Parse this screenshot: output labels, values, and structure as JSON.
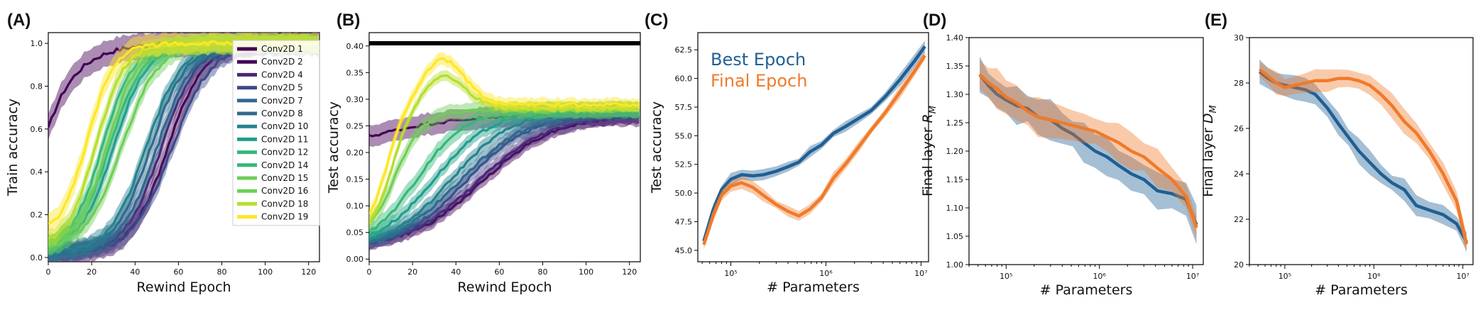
{
  "colors": {
    "viridis": [
      "#440154",
      "#482878",
      "#3e4989",
      "#31688e",
      "#26828e",
      "#1f9e89",
      "#35b779",
      "#6ece58",
      "#b5de2b",
      "#fde725"
    ],
    "best": "#1f5f94",
    "final": "#f07a2a"
  },
  "chart_data": [
    {
      "type": "line",
      "panel": "(A)",
      "xlabel": "Rewind Epoch",
      "ylabel": "Train accuracy",
      "xlim": [
        0,
        125
      ],
      "ylim": [
        -0.02,
        1.05
      ],
      "xticks": [
        "0",
        "20",
        "40",
        "60",
        "80",
        "100",
        "120"
      ],
      "yticks": [
        "0.0",
        "0.2",
        "0.4",
        "0.6",
        "0.8",
        "1.0"
      ],
      "legend_position": "top-right",
      "series": [
        {
          "name": "Conv2D 1",
          "color_idx": 0,
          "y0": 0.6,
          "a": 0.0,
          "k": 0.08,
          "ymax": 1.0,
          "band": 0.06
        },
        {
          "name": "Conv2D 2",
          "color_idx": 0,
          "y0": 0.02,
          "a": 55,
          "k": 0.12,
          "ymax": 1.0,
          "band": 0.05
        },
        {
          "name": "Conv2D 4",
          "color_idx": 1,
          "y0": 0.02,
          "a": 52,
          "k": 0.12,
          "ymax": 1.0,
          "band": 0.04
        },
        {
          "name": "Conv2D 5",
          "color_idx": 2,
          "y0": 0.02,
          "a": 57,
          "k": 0.11,
          "ymax": 1.0,
          "band": 0.04
        },
        {
          "name": "Conv2D 7",
          "color_idx": 3,
          "y0": 0.02,
          "a": 47,
          "k": 0.12,
          "ymax": 1.0,
          "band": 0.04
        },
        {
          "name": "Conv2D 8",
          "color_idx": 3,
          "y0": 0.02,
          "a": 50,
          "k": 0.12,
          "ymax": 1.0,
          "band": 0.04
        },
        {
          "name": "Conv2D 10",
          "color_idx": 4,
          "y0": 0.02,
          "a": 45,
          "k": 0.12,
          "ymax": 1.0,
          "band": 0.04
        },
        {
          "name": "Conv2D 11",
          "color_idx": 5,
          "y0": 0.03,
          "a": 30,
          "k": 0.13,
          "ymax": 1.0,
          "band": 0.04
        },
        {
          "name": "Conv2D 12",
          "color_idx": 6,
          "y0": 0.03,
          "a": 28,
          "k": 0.13,
          "ymax": 1.0,
          "band": 0.04
        },
        {
          "name": "Conv2D 14",
          "color_idx": 6,
          "y0": 0.04,
          "a": 25,
          "k": 0.14,
          "ymax": 1.0,
          "band": 0.04
        },
        {
          "name": "Conv2D 15",
          "color_idx": 7,
          "y0": 0.04,
          "a": 34,
          "k": 0.12,
          "ymax": 1.0,
          "band": 0.04
        },
        {
          "name": "Conv2D 16",
          "color_idx": 7,
          "y0": 0.04,
          "a": 27,
          "k": 0.14,
          "ymax": 1.0,
          "band": 0.04
        },
        {
          "name": "Conv2D 18",
          "color_idx": 8,
          "y0": 0.05,
          "a": 22,
          "k": 0.15,
          "ymax": 1.0,
          "band": 0.04
        },
        {
          "name": "Conv2D 19",
          "color_idx": 9,
          "y0": 0.1,
          "a": 18,
          "k": 0.16,
          "ymax": 1.0,
          "band": 0.05
        }
      ]
    },
    {
      "type": "line",
      "panel": "(B)",
      "xlabel": "Rewind Epoch",
      "ylabel": "Test accuracy",
      "xlim": [
        0,
        125
      ],
      "ylim": [
        -0.005,
        0.425
      ],
      "xticks": [
        "0",
        "20",
        "40",
        "60",
        "80",
        "100",
        "120"
      ],
      "yticks": [
        "0.00",
        "0.05",
        "0.10",
        "0.15",
        "0.20",
        "0.25",
        "0.30",
        "0.35",
        "0.40"
      ],
      "hline": {
        "y": 0.405,
        "color": "#000000"
      },
      "series": [
        {
          "color_idx": 0,
          "y0": 0.19,
          "a": 0,
          "k": 0.05,
          "ymax": 0.27,
          "band": 0.02,
          "peak": 0
        },
        {
          "color_idx": 0,
          "y0": 0.02,
          "a": 52,
          "k": 0.06,
          "ymax": 0.27,
          "band": 0.012,
          "peak": 0
        },
        {
          "color_idx": 1,
          "y0": 0.02,
          "a": 50,
          "k": 0.06,
          "ymax": 0.27,
          "band": 0.012,
          "peak": 0
        },
        {
          "color_idx": 2,
          "y0": 0.02,
          "a": 45,
          "k": 0.065,
          "ymax": 0.275,
          "band": 0.012,
          "peak": 0
        },
        {
          "color_idx": 3,
          "y0": 0.02,
          "a": 42,
          "k": 0.065,
          "ymax": 0.275,
          "band": 0.012,
          "peak": 0
        },
        {
          "color_idx": 4,
          "y0": 0.02,
          "a": 38,
          "k": 0.07,
          "ymax": 0.28,
          "band": 0.012,
          "peak": 0
        },
        {
          "color_idx": 5,
          "y0": 0.02,
          "a": 30,
          "k": 0.075,
          "ymax": 0.28,
          "band": 0.012,
          "peak": 0
        },
        {
          "color_idx": 6,
          "y0": 0.02,
          "a": 22,
          "k": 0.09,
          "ymax": 0.28,
          "band": 0.015,
          "peak": 0
        },
        {
          "color_idx": 7,
          "y0": 0.03,
          "a": 12,
          "k": 0.15,
          "ymax": 0.28,
          "band": 0.015,
          "peak": 0
        },
        {
          "color_idx": 8,
          "y0": 0.04,
          "a": 10,
          "k": 0.2,
          "ymax": 0.285,
          "band": 0.01,
          "peak": 0.06
        },
        {
          "color_idx": 9,
          "y0": 0.05,
          "a": 8,
          "k": 0.22,
          "ymax": 0.29,
          "band": 0.012,
          "peak": 0.085
        }
      ]
    },
    {
      "type": "line",
      "panel": "(C)",
      "xlabel": "# Parameters",
      "ylabel": "Test accuracy",
      "xscale": "log",
      "xlim": [
        45000,
        12000000
      ],
      "ylim": [
        44.0,
        64.0
      ],
      "xticks": [
        100000,
        1000000,
        10000000
      ],
      "yticks": [
        "45.0",
        "47.5",
        "50.0",
        "52.5",
        "55.0",
        "57.5",
        "60.0",
        "62.5"
      ],
      "legend": [
        "Best Epoch",
        "Final Epoch"
      ],
      "series": [
        {
          "name": "Best Epoch",
          "color": "best",
          "x": [
            52000,
            65000,
            80000,
            100000,
            130000,
            170000,
            220000,
            300000,
            400000,
            520000,
            680000,
            900000,
            1200000,
            1600000,
            2200000,
            3000000,
            4200000,
            6000000,
            8500000,
            11000000
          ],
          "y": [
            45.8,
            48.5,
            50.3,
            51.2,
            51.6,
            51.5,
            51.6,
            51.9,
            52.3,
            52.7,
            53.6,
            54.2,
            55.2,
            55.8,
            56.5,
            57.2,
            58.4,
            59.9,
            61.5,
            62.8
          ],
          "band": 0.3
        },
        {
          "name": "Final Epoch",
          "color": "final",
          "x": [
            52000,
            65000,
            80000,
            100000,
            130000,
            170000,
            220000,
            300000,
            400000,
            520000,
            680000,
            900000,
            1200000,
            1600000,
            2200000,
            3000000,
            4200000,
            6000000,
            8500000,
            11000000
          ],
          "y": [
            45.5,
            48.0,
            49.8,
            50.6,
            50.9,
            50.5,
            49.8,
            49.0,
            48.4,
            48.0,
            48.6,
            49.6,
            51.3,
            52.5,
            54.0,
            55.5,
            57.0,
            58.8,
            60.6,
            62.0
          ],
          "band": 0.3
        }
      ]
    },
    {
      "type": "line",
      "panel": "(D)",
      "xlabel": "# Parameters",
      "ylabel": "Final layer R_M",
      "xscale": "log",
      "xlim": [
        40000,
        13000000
      ],
      "ylim": [
        1.0,
        1.4
      ],
      "xticks": [
        100000,
        1000000,
        10000000
      ],
      "yticks": [
        "1.00",
        "1.05",
        "1.10",
        "1.15",
        "1.20",
        "1.25",
        "1.30",
        "1.35",
        "1.40"
      ],
      "series": [
        {
          "name": "Best Epoch",
          "color": "best",
          "x": [
            52000,
            65000,
            80000,
            100000,
            130000,
            170000,
            220000,
            300000,
            400000,
            520000,
            680000,
            900000,
            1200000,
            1600000,
            2200000,
            3000000,
            4200000,
            6000000,
            8500000,
            11000000
          ],
          "y": [
            1.335,
            1.315,
            1.3,
            1.29,
            1.28,
            1.275,
            1.26,
            1.255,
            1.24,
            1.23,
            1.215,
            1.2,
            1.19,
            1.175,
            1.16,
            1.15,
            1.13,
            1.125,
            1.115,
            1.07
          ],
          "band": 0.02
        },
        {
          "name": "Final Epoch",
          "color": "final",
          "x": [
            52000,
            65000,
            80000,
            100000,
            130000,
            170000,
            220000,
            300000,
            400000,
            520000,
            680000,
            900000,
            1200000,
            1600000,
            2200000,
            3000000,
            4200000,
            6000000,
            8500000,
            11000000
          ],
          "y": [
            1.335,
            1.32,
            1.31,
            1.295,
            1.285,
            1.27,
            1.26,
            1.255,
            1.25,
            1.245,
            1.24,
            1.235,
            1.225,
            1.215,
            1.2,
            1.19,
            1.17,
            1.15,
            1.12,
            1.065
          ],
          "band": 0.02
        }
      ]
    },
    {
      "type": "line",
      "panel": "(E)",
      "xlabel": "# Parameters",
      "ylabel": "Final layer D_M",
      "xscale": "log",
      "xlim": [
        40000,
        13000000
      ],
      "ylim": [
        20,
        30
      ],
      "xticks": [
        100000,
        1000000,
        10000000
      ],
      "yticks": [
        "20",
        "22",
        "24",
        "26",
        "28",
        "30"
      ],
      "series": [
        {
          "name": "Best Epoch",
          "color": "best",
          "x": [
            52000,
            65000,
            80000,
            100000,
            130000,
            170000,
            220000,
            300000,
            400000,
            520000,
            680000,
            900000,
            1200000,
            1600000,
            2200000,
            3000000,
            4200000,
            6000000,
            8500000,
            11000000
          ],
          "y": [
            28.5,
            28.2,
            28.0,
            27.9,
            27.8,
            27.7,
            27.5,
            26.9,
            26.2,
            25.6,
            25.0,
            24.5,
            24.0,
            23.6,
            23.3,
            22.6,
            22.4,
            22.2,
            21.8,
            21.0
          ],
          "band": 0.3
        },
        {
          "name": "Final Epoch",
          "color": "final",
          "x": [
            52000,
            65000,
            80000,
            100000,
            130000,
            170000,
            220000,
            300000,
            400000,
            520000,
            680000,
            900000,
            1200000,
            1600000,
            2200000,
            3000000,
            4200000,
            6000000,
            8500000,
            11000000
          ],
          "y": [
            28.6,
            28.3,
            28.0,
            27.8,
            27.9,
            28.0,
            28.1,
            28.1,
            28.2,
            28.2,
            28.1,
            27.9,
            27.5,
            27.0,
            26.3,
            25.8,
            25.0,
            24.0,
            22.8,
            20.9
          ],
          "band": 0.3
        }
      ]
    }
  ],
  "panel_labels": [
    "(A)",
    "(B)",
    "(C)",
    "(D)",
    "(E)"
  ],
  "legend_c": {
    "best": "Best Epoch",
    "final": "Final Epoch"
  },
  "tick_labels_log": [
    "10⁵",
    "10⁶",
    "10⁷"
  ]
}
